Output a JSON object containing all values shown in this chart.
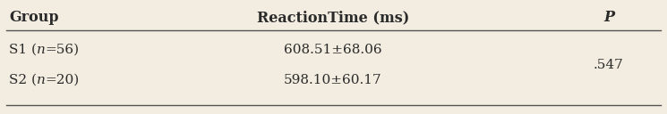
{
  "headers": [
    "Group",
    "ReactionTime (ms)",
    "P"
  ],
  "row1_group": "S1 (",
  "row1_n": "n",
  "row1_rest": "=56)",
  "row1_rt": "608.51±68.06",
  "row2_group": "S2 (",
  "row2_n": "n",
  "row2_rest": "=20)",
  "row2_rt": "598.10±60.17",
  "p_value": ".547",
  "bg_color": "#f2ede0",
  "text_color": "#2a2a2a",
  "header_fontsize": 11.5,
  "data_fontsize": 11.0,
  "line_color": "#555555"
}
